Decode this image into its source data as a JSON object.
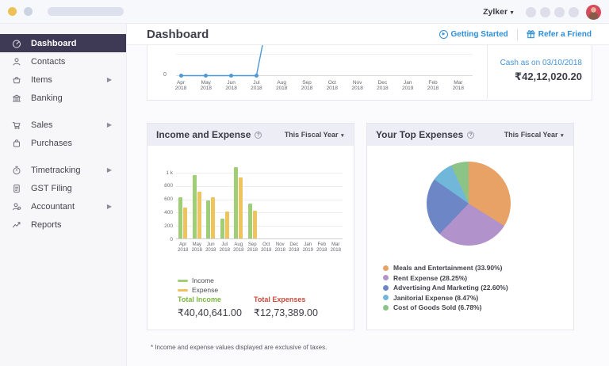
{
  "topbar": {
    "company": "Zylker",
    "icon_placeholder_count": 4
  },
  "header": {
    "title": "Dashboard",
    "getting_started": "Getting Started",
    "refer_friend": "Refer a Friend"
  },
  "sidebar": {
    "items": [
      {
        "label": "Dashboard",
        "icon": "gauge-icon",
        "active": true,
        "has_submenu": false,
        "gap_before": false
      },
      {
        "label": "Contacts",
        "icon": "person-icon",
        "active": false,
        "has_submenu": false,
        "gap_before": false
      },
      {
        "label": "Items",
        "icon": "basket-icon",
        "active": false,
        "has_submenu": true,
        "gap_before": false
      },
      {
        "label": "Banking",
        "icon": "bank-icon",
        "active": false,
        "has_submenu": false,
        "gap_before": false
      },
      {
        "label": "Sales",
        "icon": "cart-icon",
        "active": false,
        "has_submenu": true,
        "gap_before": true
      },
      {
        "label": "Purchases",
        "icon": "bag-icon",
        "active": false,
        "has_submenu": false,
        "gap_before": false
      },
      {
        "label": "Timetracking",
        "icon": "stopwatch-icon",
        "active": false,
        "has_submenu": true,
        "gap_before": true
      },
      {
        "label": "GST Filing",
        "icon": "document-icon",
        "active": false,
        "has_submenu": false,
        "gap_before": false
      },
      {
        "label": "Accountant",
        "icon": "accountant-icon",
        "active": false,
        "has_submenu": true,
        "gap_before": false
      },
      {
        "label": "Reports",
        "icon": "trend-icon",
        "active": false,
        "has_submenu": false,
        "gap_before": false
      }
    ]
  },
  "months": [
    [
      "Apr",
      "2018"
    ],
    [
      "May",
      "2018"
    ],
    [
      "Jun",
      "2018"
    ],
    [
      "Jul",
      "2018"
    ],
    [
      "Aug",
      "2018"
    ],
    [
      "Sep",
      "2018"
    ],
    [
      "Oct",
      "2018"
    ],
    [
      "Nov",
      "2018"
    ],
    [
      "Dec",
      "2018"
    ],
    [
      "Jan",
      "2019"
    ],
    [
      "Feb",
      "2018"
    ],
    [
      "Mar",
      "2018"
    ]
  ],
  "cash_panel": {
    "label": "Cash as on 03/10/2018",
    "value": "₹42,12,020.20"
  },
  "income_expense_card": {
    "title": "Income and Expense",
    "help_icon": "?",
    "filter": "This Fiscal Year",
    "total_income_label": "Total Income",
    "total_income_value": "₹40,40,641.00",
    "total_expenses_label": "Total Expenses",
    "total_expenses_value": "₹12,73,389.00"
  },
  "top_expenses_card": {
    "title": "Your Top Expenses",
    "help_icon": "?",
    "filter": "This Fiscal Year"
  },
  "footnote": "* Income and expense values displayed are exclusive of taxes.",
  "chart_data": [
    {
      "id": "cashflow",
      "type": "line",
      "title": "Cash as on 03/10/2018",
      "x": [
        "Apr 2018",
        "May 2018",
        "Jun 2018",
        "Jul 2018",
        "Aug 2018",
        "Sep 2018",
        "Oct 2018",
        "Nov 2018",
        "Dec 2018",
        "Jan 2019",
        "Feb 2018",
        "Mar 2018"
      ],
      "series": [
        {
          "name": "Cash",
          "values": [
            0,
            0,
            0,
            0,
            null,
            null,
            null,
            null,
            null,
            null,
            null,
            null
          ]
        }
      ],
      "zero_label": "0",
      "dot_count": 4,
      "annotation": "line is flat at 0 from Apr to Jul 2018 then rises steeply and is clipped by the top edge",
      "line_color": "#4e97d8"
    },
    {
      "id": "income-expense",
      "type": "bar",
      "categories": [
        "Apr 2018",
        "May 2018",
        "Jun 2018",
        "Jul 2018",
        "Aug 2018",
        "Sep 2018",
        "Oct 2018",
        "Nov 2018",
        "Dec 2018",
        "Jan 2019",
        "Feb 2018",
        "Mar 2018"
      ],
      "series": [
        {
          "name": "Income",
          "color": "#9fce76",
          "values": [
            620,
            950,
            570,
            300,
            1070,
            520,
            0,
            0,
            0,
            0,
            0,
            0
          ]
        },
        {
          "name": "Expense",
          "color": "#eec45f",
          "values": [
            465,
            705,
            620,
            410,
            920,
            420,
            0,
            0,
            0,
            0,
            0,
            0
          ]
        }
      ],
      "yticks": [
        0,
        200,
        400,
        600,
        800,
        1000
      ],
      "ytick_labels": [
        "0",
        "200",
        "400",
        "600",
        "800",
        "1 k"
      ],
      "ylim": [
        0,
        1100
      ],
      "legend_position": "bottom-left",
      "grid": true
    },
    {
      "id": "top-expenses",
      "type": "pie",
      "labels": [
        "Meals and Entertainment (33.90%)",
        "Rent Expense (28.25%)",
        "Advertising And Marketing (22.60%)",
        "Janitorial Expense (8.47%)",
        "Cost of Goods Sold (6.78%)"
      ],
      "values": [
        33.9,
        28.25,
        22.6,
        8.47,
        6.78
      ],
      "colors": [
        "#e8a266",
        "#b292cb",
        "#6c86c6",
        "#70b7da",
        "#8cc487"
      ],
      "legend_position": "bottom"
    }
  ]
}
